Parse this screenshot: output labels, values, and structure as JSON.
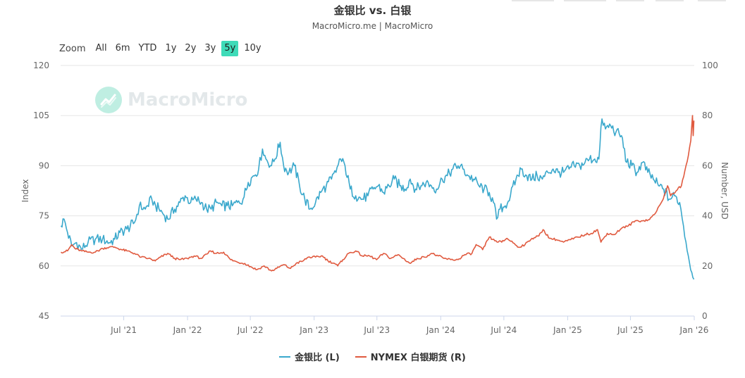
{
  "title": "金银比 vs. 白银",
  "subtitle": "MacroMicro.me | MacroMicro",
  "watermark": "MacroMicro",
  "zoom": {
    "label": "Zoom",
    "buttons": [
      "All",
      "6m",
      "YTD",
      "1y",
      "2y",
      "3y",
      "5y",
      "10y"
    ],
    "active": "5y"
  },
  "colors": {
    "ratio": "#3aa8cc",
    "silver": "#e05a3f",
    "zoom_active": "#3edbb8"
  },
  "chart_data": {
    "type": "line",
    "x_range": [
      "2020-12-31",
      "2026-01-01"
    ],
    "x_ticks": [
      {
        "date": "2021-07-01",
        "label": "Jul '21"
      },
      {
        "date": "2022-01-01",
        "label": "Jan '22"
      },
      {
        "date": "2022-07-01",
        "label": "Jul '22"
      },
      {
        "date": "2023-01-01",
        "label": "Jan '23"
      },
      {
        "date": "2023-07-01",
        "label": "Jul '23"
      },
      {
        "date": "2024-01-01",
        "label": "Jan '24"
      },
      {
        "date": "2024-07-01",
        "label": "Jul '24"
      },
      {
        "date": "2025-01-01",
        "label": "Jan '25"
      },
      {
        "date": "2025-07-01",
        "label": "Jul '25"
      },
      {
        "date": "2026-01-01",
        "label": "Jan '26"
      }
    ],
    "y_left": {
      "label": "Index",
      "min": 45,
      "max": 120,
      "ticks": [
        45,
        60,
        75,
        90,
        105,
        120
      ]
    },
    "y_right": {
      "label": "Number, USD",
      "min": 0,
      "max": 100,
      "ticks": [
        0,
        20,
        40,
        60,
        80,
        100
      ]
    },
    "grid": true,
    "legend_position": "bottom",
    "series": [
      {
        "name": "金银比 (L)",
        "axis": "left",
        "points": [
          [
            "2021-01-01",
            72
          ],
          [
            "2021-01-10",
            74
          ],
          [
            "2021-01-20",
            70
          ],
          [
            "2021-02-01",
            66
          ],
          [
            "2021-02-15",
            67
          ],
          [
            "2021-03-01",
            65
          ],
          [
            "2021-03-20",
            67
          ],
          [
            "2021-04-10",
            68
          ],
          [
            "2021-05-01",
            68
          ],
          [
            "2021-05-20",
            67
          ],
          [
            "2021-06-05",
            68
          ],
          [
            "2021-06-20",
            70
          ],
          [
            "2021-07-10",
            71
          ],
          [
            "2021-08-01",
            73
          ],
          [
            "2021-08-15",
            78
          ],
          [
            "2021-09-01",
            77
          ],
          [
            "2021-09-20",
            80
          ],
          [
            "2021-10-01",
            78
          ],
          [
            "2021-10-20",
            76
          ],
          [
            "2021-11-05",
            74
          ],
          [
            "2021-11-25",
            77
          ],
          [
            "2021-12-10",
            79
          ],
          [
            "2021-12-25",
            81
          ],
          [
            "2022-01-10",
            79
          ],
          [
            "2022-01-25",
            80
          ],
          [
            "2022-02-10",
            79
          ],
          [
            "2022-02-25",
            77
          ],
          [
            "2022-03-10",
            77
          ],
          [
            "2022-03-25",
            79
          ],
          [
            "2022-04-10",
            78
          ],
          [
            "2022-04-25",
            78
          ],
          [
            "2022-05-10",
            78
          ],
          [
            "2022-05-25",
            79
          ],
          [
            "2022-06-10",
            80
          ],
          [
            "2022-06-25",
            85
          ],
          [
            "2022-07-10",
            87
          ],
          [
            "2022-07-25",
            89
          ],
          [
            "2022-08-05",
            95
          ],
          [
            "2022-08-15",
            92
          ],
          [
            "2022-08-31",
            90
          ],
          [
            "2022-09-10",
            92
          ],
          [
            "2022-09-25",
            97
          ],
          [
            "2022-10-05",
            90
          ],
          [
            "2022-10-20",
            88
          ],
          [
            "2022-11-05",
            90
          ],
          [
            "2022-11-20",
            84
          ],
          [
            "2022-12-05",
            80
          ],
          [
            "2022-12-20",
            77
          ],
          [
            "2023-01-05",
            79
          ],
          [
            "2023-01-20",
            82
          ],
          [
            "2023-02-05",
            84
          ],
          [
            "2023-02-20",
            86
          ],
          [
            "2023-03-05",
            88
          ],
          [
            "2023-03-15",
            92
          ],
          [
            "2023-03-31",
            90
          ],
          [
            "2023-04-15",
            83
          ],
          [
            "2023-05-01",
            81
          ],
          [
            "2023-05-20",
            80
          ],
          [
            "2023-06-05",
            81
          ],
          [
            "2023-06-20",
            83
          ],
          [
            "2023-07-05",
            84
          ],
          [
            "2023-07-20",
            82
          ],
          [
            "2023-08-05",
            84
          ],
          [
            "2023-08-20",
            86
          ],
          [
            "2023-09-05",
            84
          ],
          [
            "2023-09-20",
            83
          ],
          [
            "2023-10-05",
            86
          ],
          [
            "2023-10-20",
            83
          ],
          [
            "2023-11-05",
            84
          ],
          [
            "2023-11-20",
            85
          ],
          [
            "2023-12-05",
            84
          ],
          [
            "2023-12-20",
            83
          ],
          [
            "2024-01-05",
            86
          ],
          [
            "2024-01-20",
            87
          ],
          [
            "2024-02-05",
            89
          ],
          [
            "2024-02-20",
            90
          ],
          [
            "2024-03-05",
            89
          ],
          [
            "2024-03-20",
            87
          ],
          [
            "2024-04-05",
            86
          ],
          [
            "2024-04-20",
            84
          ],
          [
            "2024-05-05",
            83
          ],
          [
            "2024-05-20",
            82
          ],
          [
            "2024-06-01",
            79
          ],
          [
            "2024-06-10",
            74
          ],
          [
            "2024-06-20",
            77
          ],
          [
            "2024-07-05",
            78
          ],
          [
            "2024-07-20",
            81
          ],
          [
            "2024-08-05",
            86
          ],
          [
            "2024-08-20",
            89
          ],
          [
            "2024-09-05",
            87
          ],
          [
            "2024-09-20",
            86
          ],
          [
            "2024-10-05",
            87
          ],
          [
            "2024-10-20",
            86
          ],
          [
            "2024-11-05",
            88
          ],
          [
            "2024-11-20",
            89
          ],
          [
            "2024-12-05",
            88
          ],
          [
            "2024-12-20",
            88
          ],
          [
            "2025-01-05",
            89
          ],
          [
            "2025-01-20",
            90
          ],
          [
            "2025-02-05",
            90
          ],
          [
            "2025-02-20",
            91
          ],
          [
            "2025-03-05",
            92
          ],
          [
            "2025-03-20",
            92
          ],
          [
            "2025-04-01",
            92
          ],
          [
            "2025-04-10",
            104
          ],
          [
            "2025-04-20",
            101
          ],
          [
            "2025-05-05",
            102
          ],
          [
            "2025-05-20",
            100
          ],
          [
            "2025-06-05",
            99
          ],
          [
            "2025-06-20",
            91
          ],
          [
            "2025-07-05",
            90
          ],
          [
            "2025-07-20",
            88
          ],
          [
            "2025-08-05",
            91
          ],
          [
            "2025-08-20",
            88
          ],
          [
            "2025-09-05",
            86
          ],
          [
            "2025-09-20",
            84
          ],
          [
            "2025-10-05",
            83
          ],
          [
            "2025-10-20",
            80
          ],
          [
            "2025-11-05",
            81
          ],
          [
            "2025-11-20",
            79
          ],
          [
            "2025-12-01",
            72
          ],
          [
            "2025-12-15",
            63
          ],
          [
            "2025-12-25",
            58
          ],
          [
            "2025-12-31",
            56
          ]
        ]
      },
      {
        "name": "NYMEX 白银期货 (R)",
        "axis": "right",
        "points": [
          [
            "2021-01-01",
            25.5
          ],
          [
            "2021-01-20",
            26
          ],
          [
            "2021-02-01",
            28.5
          ],
          [
            "2021-02-10",
            27
          ],
          [
            "2021-03-01",
            26
          ],
          [
            "2021-03-20",
            25.5
          ],
          [
            "2021-04-10",
            25.5
          ],
          [
            "2021-05-01",
            27
          ],
          [
            "2021-05-20",
            27.5
          ],
          [
            "2021-06-05",
            27.5
          ],
          [
            "2021-06-25",
            26.5
          ],
          [
            "2021-07-10",
            26
          ],
          [
            "2021-08-01",
            25
          ],
          [
            "2021-08-20",
            23.5
          ],
          [
            "2021-09-10",
            23
          ],
          [
            "2021-09-30",
            22
          ],
          [
            "2021-10-15",
            23.5
          ],
          [
            "2021-11-05",
            25
          ],
          [
            "2021-11-25",
            23
          ],
          [
            "2021-12-10",
            22.5
          ],
          [
            "2021-12-31",
            23
          ],
          [
            "2022-01-20",
            24
          ],
          [
            "2022-02-10",
            23
          ],
          [
            "2022-03-01",
            25
          ],
          [
            "2022-03-08",
            26
          ],
          [
            "2022-03-25",
            25
          ],
          [
            "2022-04-15",
            25.5
          ],
          [
            "2022-05-05",
            22.5
          ],
          [
            "2022-05-25",
            21.5
          ],
          [
            "2022-06-15",
            21
          ],
          [
            "2022-07-05",
            19.5
          ],
          [
            "2022-07-20",
            18.5
          ],
          [
            "2022-08-10",
            20
          ],
          [
            "2022-08-31",
            18
          ],
          [
            "2022-09-15",
            19
          ],
          [
            "2022-10-05",
            20.5
          ],
          [
            "2022-10-25",
            19
          ],
          [
            "2022-11-10",
            21
          ],
          [
            "2022-11-30",
            22
          ],
          [
            "2022-12-15",
            23.5
          ],
          [
            "2023-01-05",
            23.5
          ],
          [
            "2023-01-25",
            24
          ],
          [
            "2023-02-10",
            22
          ],
          [
            "2023-03-01",
            21
          ],
          [
            "2023-03-10",
            20
          ],
          [
            "2023-03-25",
            22.5
          ],
          [
            "2023-04-10",
            25
          ],
          [
            "2023-05-01",
            26
          ],
          [
            "2023-05-20",
            24
          ],
          [
            "2023-06-10",
            24
          ],
          [
            "2023-06-30",
            22.5
          ],
          [
            "2023-07-20",
            25
          ],
          [
            "2023-08-10",
            23
          ],
          [
            "2023-08-31",
            24.5
          ],
          [
            "2023-09-15",
            23
          ],
          [
            "2023-10-05",
            21
          ],
          [
            "2023-10-25",
            23
          ],
          [
            "2023-11-15",
            23.5
          ],
          [
            "2023-12-05",
            25
          ],
          [
            "2023-12-25",
            24
          ],
          [
            "2024-01-10",
            23
          ],
          [
            "2024-01-30",
            22.5
          ],
          [
            "2024-02-20",
            22.5
          ],
          [
            "2024-03-10",
            24.5
          ],
          [
            "2024-03-31",
            25
          ],
          [
            "2024-04-12",
            28.5
          ],
          [
            "2024-05-01",
            26.5
          ],
          [
            "2024-05-20",
            31.5
          ],
          [
            "2024-06-05",
            30
          ],
          [
            "2024-06-25",
            29.5
          ],
          [
            "2024-07-10",
            31
          ],
          [
            "2024-07-31",
            29
          ],
          [
            "2024-08-10",
            27.5
          ],
          [
            "2024-08-31",
            28.5
          ],
          [
            "2024-09-20",
            31
          ],
          [
            "2024-10-10",
            32
          ],
          [
            "2024-10-22",
            34.5
          ],
          [
            "2024-11-10",
            31
          ],
          [
            "2024-11-30",
            30.5
          ],
          [
            "2024-12-20",
            29.5
          ],
          [
            "2025-01-10",
            30.5
          ],
          [
            "2025-01-31",
            31.5
          ],
          [
            "2025-02-20",
            32.5
          ],
          [
            "2025-03-10",
            33
          ],
          [
            "2025-03-28",
            34.5
          ],
          [
            "2025-04-07",
            29.5
          ],
          [
            "2025-04-25",
            33
          ],
          [
            "2025-05-15",
            32.5
          ],
          [
            "2025-06-05",
            35
          ],
          [
            "2025-06-25",
            36
          ],
          [
            "2025-07-15",
            38
          ],
          [
            "2025-08-05",
            38
          ],
          [
            "2025-08-25",
            38.5
          ],
          [
            "2025-09-15",
            42
          ],
          [
            "2025-10-01",
            46
          ],
          [
            "2025-10-16",
            52
          ],
          [
            "2025-10-25",
            48
          ],
          [
            "2025-11-10",
            50
          ],
          [
            "2025-11-25",
            52
          ],
          [
            "2025-12-05",
            58
          ],
          [
            "2025-12-15",
            64
          ],
          [
            "2025-12-22",
            70
          ],
          [
            "2025-12-27",
            80
          ],
          [
            "2025-12-29",
            72
          ],
          [
            "2025-12-31",
            78
          ]
        ]
      }
    ]
  }
}
